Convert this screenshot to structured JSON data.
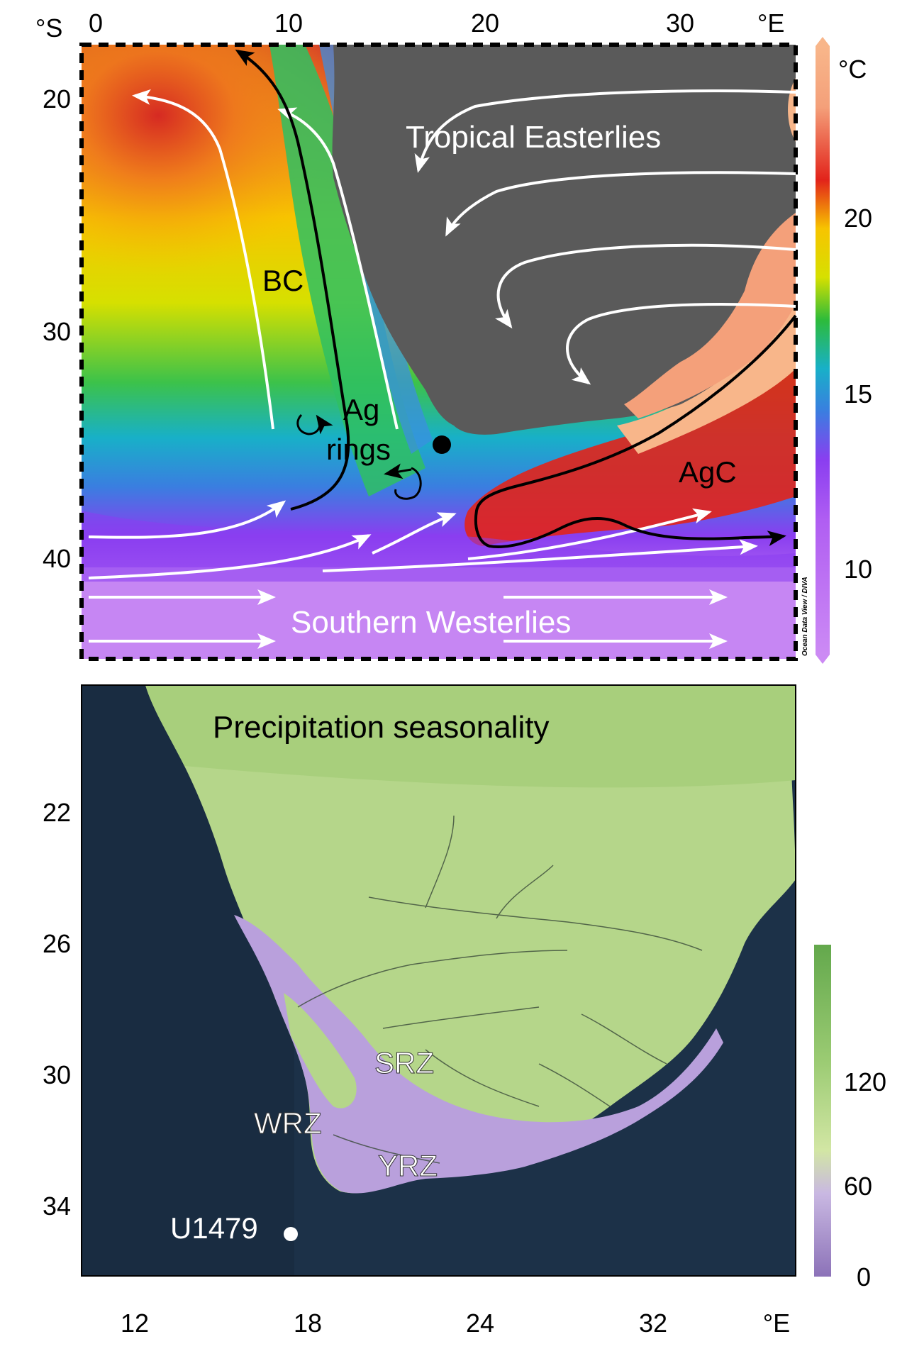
{
  "top_panel": {
    "lat_unit": "°S",
    "lon_unit": "°E",
    "lon_ticks": [
      "0",
      "10",
      "20",
      "30"
    ],
    "lat_ticks": [
      "20",
      "30",
      "40"
    ],
    "colorbar": {
      "unit": "°C",
      "ticks": [
        "20",
        "15",
        "10"
      ]
    },
    "labels": {
      "tropical_easterlies": "Tropical Easterlies",
      "southern_westerlies": "Southern Westerlies",
      "bc": "BC",
      "ag_rings_line1": "Ag",
      "ag_rings_line2": "rings",
      "agc": "AgC"
    },
    "credit": "Ocean Data View / DIVA",
    "colors": {
      "land": "#5a5a5a",
      "wind_arrows": "#ffffff",
      "currents": "#000000",
      "site_marker": "#000000"
    }
  },
  "bottom_panel": {
    "title": "Precipitation seasonality",
    "lon_unit": "°E",
    "lon_ticks": [
      "12",
      "18",
      "24",
      "32"
    ],
    "lat_ticks": [
      "22",
      "26",
      "30",
      "34"
    ],
    "colorbar": {
      "ticks": [
        "120",
        "60",
        "0"
      ]
    },
    "zones": {
      "srz": "SRZ",
      "wrz": "WRZ",
      "yrz": "YRZ"
    },
    "site": "U1479",
    "colors": {
      "ocean": "#1c3148",
      "land": "#b5d68a",
      "winter_rain": "#b9a0dc",
      "site_marker": "#ffffff"
    }
  }
}
